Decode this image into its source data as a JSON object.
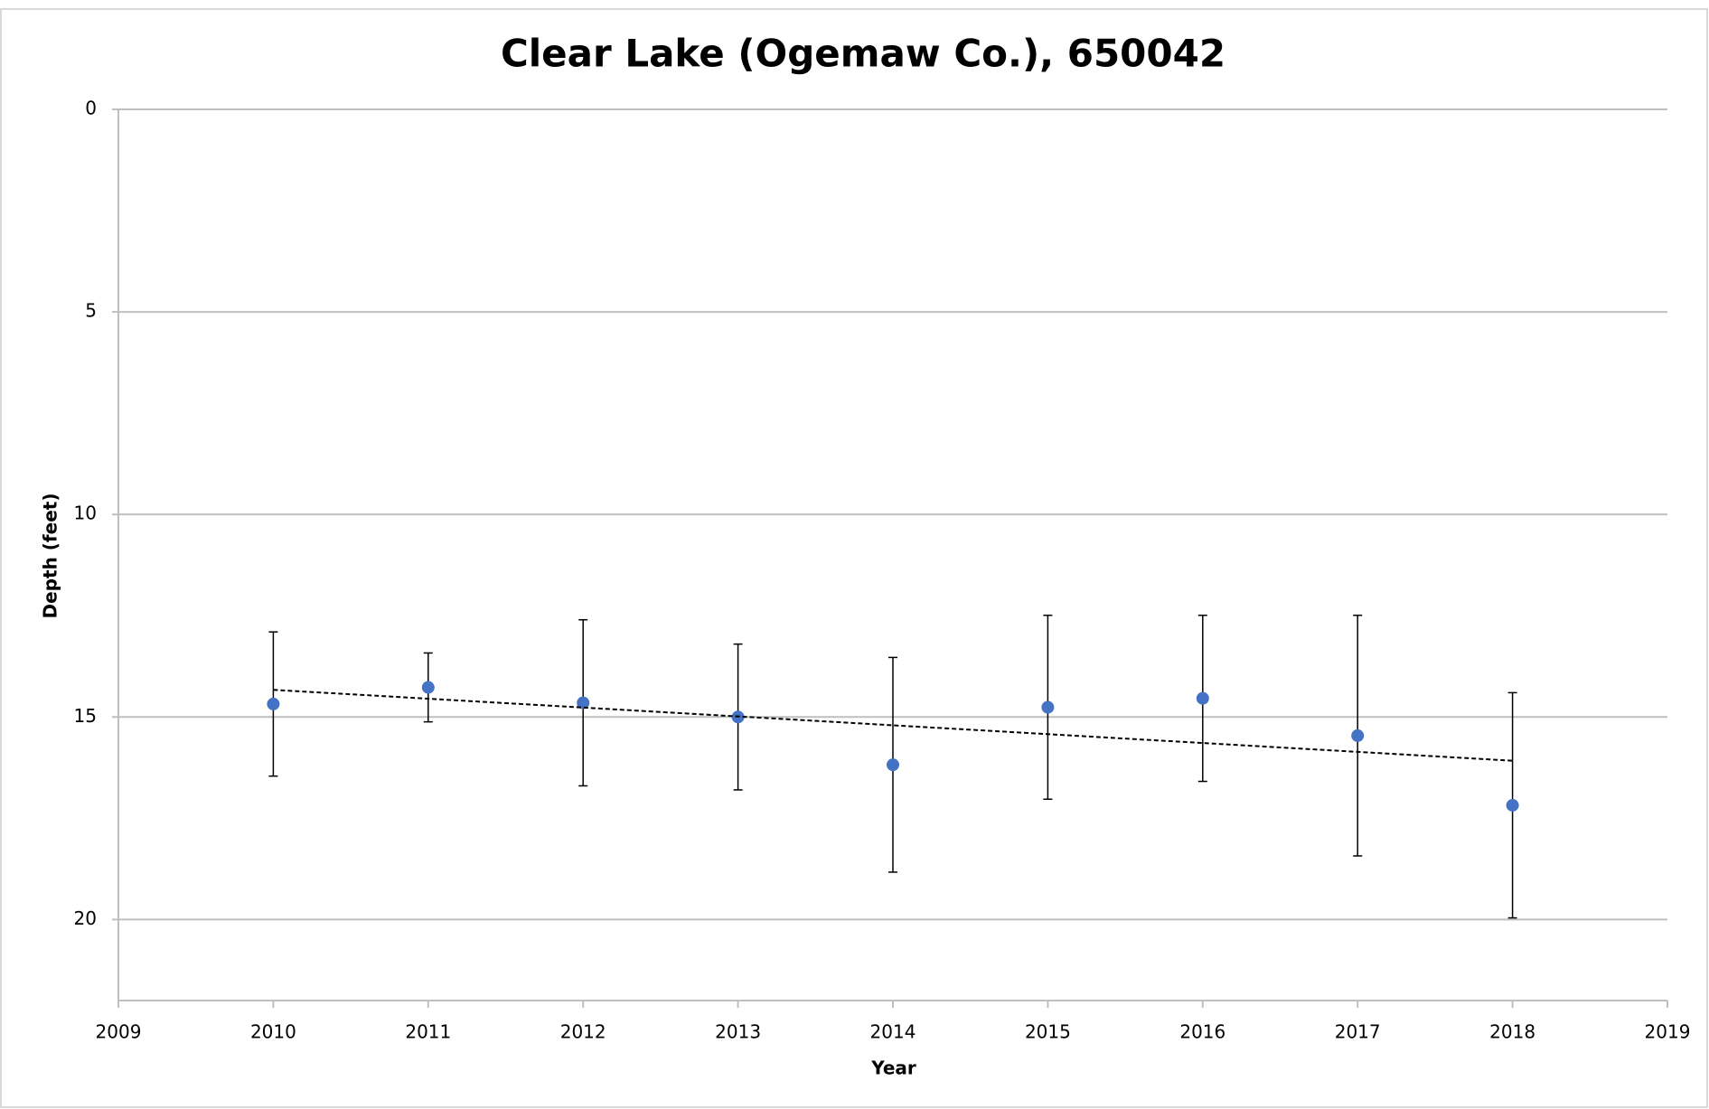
{
  "chart_data": {
    "type": "scatter",
    "title": "Clear Lake (Ogemaw Co.), 650042",
    "x_label": "Year",
    "y_label": "Depth (feet)",
    "x": [
      2010,
      2011,
      2012,
      2013,
      2014,
      2015,
      2016,
      2017,
      2018
    ],
    "series": [
      {
        "color": "#4472c4",
        "values": [
          14.68,
          14.27,
          14.65,
          15.0,
          16.18,
          14.76,
          14.54,
          15.46,
          17.18
        ],
        "errors": [
          1.78,
          0.85,
          2.05,
          1.8,
          2.65,
          2.27,
          2.05,
          2.97,
          2.78
        ]
      }
    ],
    "trendline": {
      "x": [
        2010,
        2018
      ],
      "values": [
        14.33,
        16.08
      ],
      "color": "#000000"
    },
    "xlim": [
      2009,
      2019
    ],
    "xticks": [
      2009,
      2010,
      2011,
      2012,
      2013,
      2014,
      2015,
      2016,
      2017,
      2018,
      2019
    ],
    "ylim": [
      0,
      22
    ],
    "yticks": [
      0,
      5,
      10,
      15,
      20
    ],
    "y_inverted": true,
    "grid": true
  }
}
